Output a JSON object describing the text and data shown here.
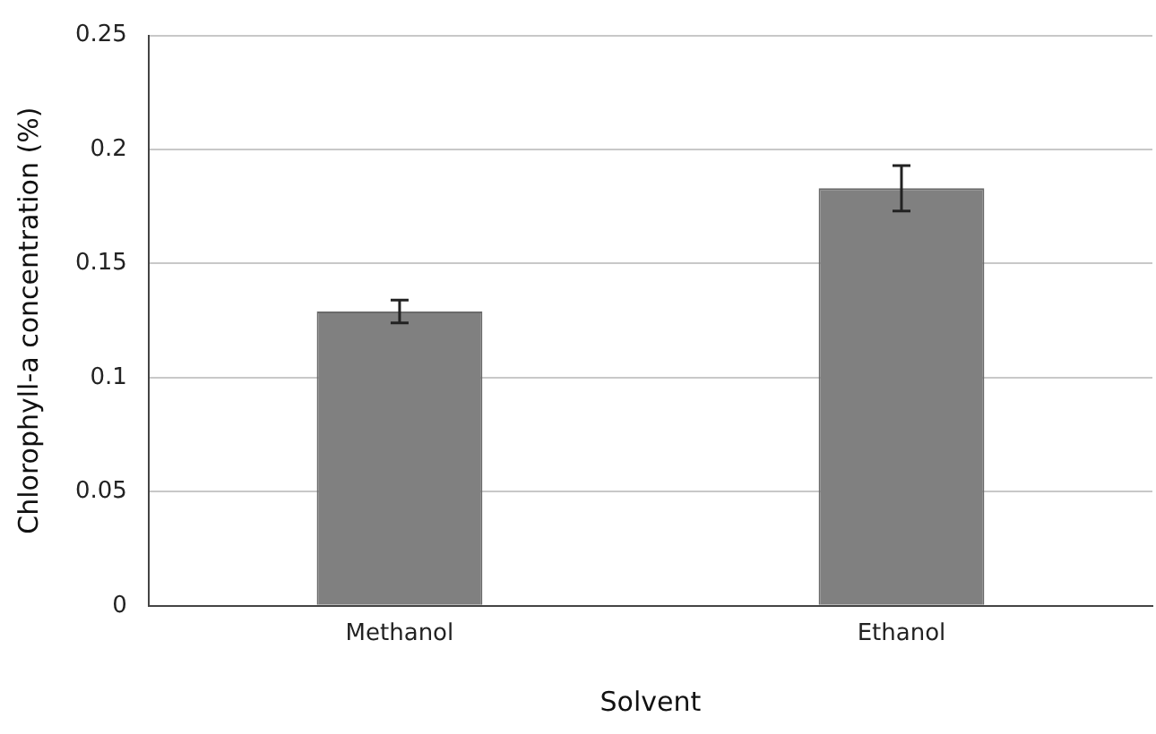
{
  "chart_data": {
    "type": "bar",
    "xlabel": "Solvent",
    "ylabel": "Chlorophyll-a concentration (%)",
    "categories": [
      "Methanol",
      "Ethanol"
    ],
    "values": [
      0.129,
      0.183
    ],
    "errors": [
      0.005,
      0.01
    ],
    "color": "#808080",
    "ylim": [
      0,
      0.25
    ],
    "yticks": [
      0,
      0.05,
      0.1,
      0.15,
      0.2,
      0.25
    ],
    "grid": "y",
    "legend": false
  }
}
